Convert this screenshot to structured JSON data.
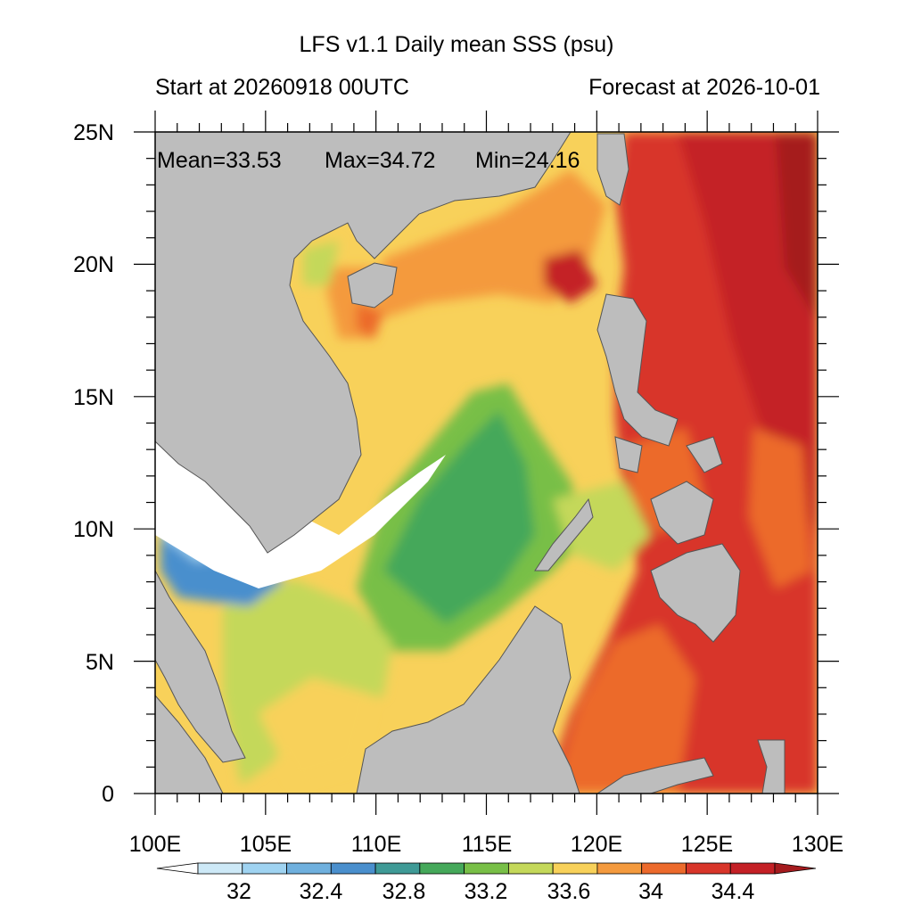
{
  "title": "LFS v1.1 Daily mean SSS (psu)",
  "subtitle_left": "Start at 20260918 00UTC",
  "subtitle_right": "Forecast at 2026-10-01",
  "stats": {
    "mean_label": "Mean=33.53",
    "max_label": "Max=34.72",
    "min_label": "Min=24.16"
  },
  "axes": {
    "lon_range": [
      100,
      130
    ],
    "lat_range": [
      0,
      25
    ],
    "x_tick_labels": [
      "100E",
      "105E",
      "110E",
      "115E",
      "120E",
      "125E",
      "130E"
    ],
    "y_tick_labels": [
      "0",
      "5N",
      "10N",
      "15N",
      "20N",
      "25N"
    ]
  },
  "colorbar": {
    "levels": [
      "32",
      "32.4",
      "32.8",
      "33.2",
      "33.6",
      "34",
      "34.4"
    ],
    "colors": [
      "#ffffff",
      "#cde9f7",
      "#9fd3f1",
      "#6fb0de",
      "#4a8fcd",
      "#3f9a96",
      "#45a85a",
      "#78bf47",
      "#c4d85a",
      "#f8d15a",
      "#f49a3e",
      "#ec6a2c",
      "#d8352a",
      "#c42026",
      "#a51b1e"
    ]
  },
  "legend_colors": {
    "land": "#bdbdbd",
    "missing": "#ffffff"
  }
}
